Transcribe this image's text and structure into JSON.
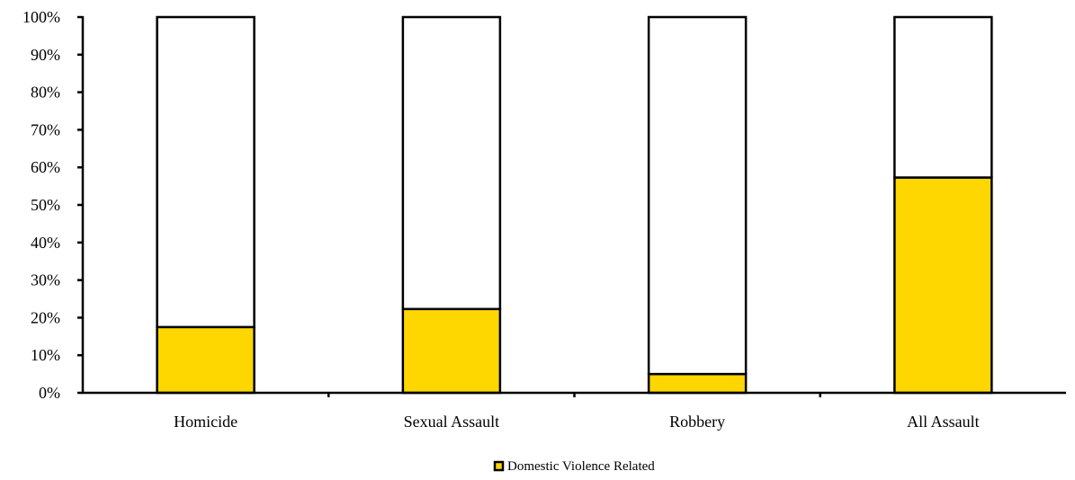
{
  "chart_data": {
    "type": "bar",
    "stacked": true,
    "percent_stacked": true,
    "categories": [
      "Homicide",
      "Sexual Assault",
      "Robbery",
      "All Assault"
    ],
    "series": [
      {
        "name": "Domestic Violence Related",
        "values": [
          17.5,
          22.3,
          5.0,
          57.3
        ],
        "color": "#FFD700"
      },
      {
        "values": [
          82.5,
          77.7,
          95.0,
          42.7
        ],
        "color": "#FFFFFF"
      }
    ],
    "ylim": [
      0,
      100
    ],
    "yticks": [
      "0%",
      "10%",
      "20%",
      "30%",
      "40%",
      "50%",
      "60%",
      "70%",
      "80%",
      "90%",
      "100%"
    ],
    "title": "",
    "xlabel": "",
    "ylabel": "",
    "grid": false,
    "legend": {
      "position": "bottom-center",
      "entries": [
        "Domestic Violence Related"
      ]
    }
  }
}
